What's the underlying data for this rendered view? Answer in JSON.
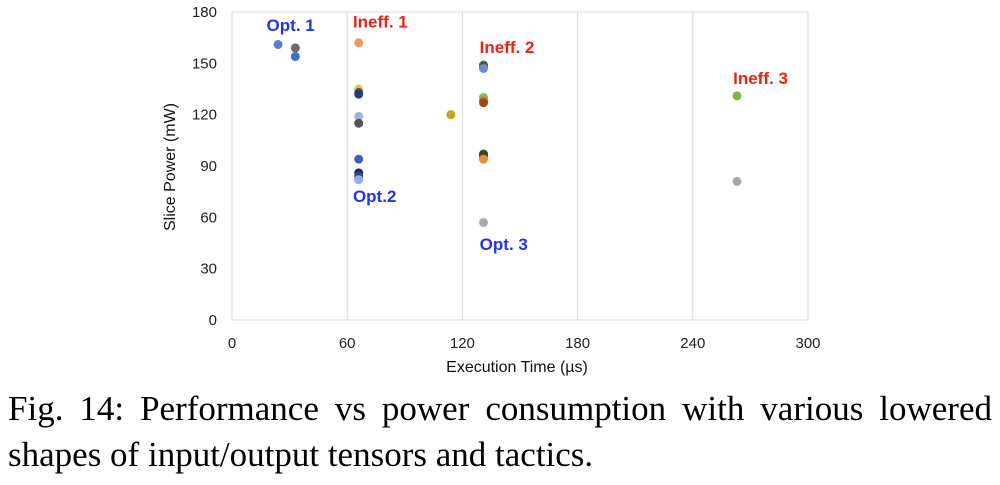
{
  "chart_data": {
    "type": "scatter",
    "xlabel": "Execution Time (µs)",
    "ylabel": "Slice Power (mW)",
    "xlim": [
      0,
      300
    ],
    "ylim": [
      0,
      180
    ],
    "xticks": [
      0,
      60,
      120,
      180,
      240,
      300
    ],
    "yticks": [
      0,
      30,
      60,
      90,
      120,
      150,
      180
    ],
    "grid": "vertical",
    "points": [
      {
        "x": 24,
        "y": 161,
        "color": "#5b7fc7"
      },
      {
        "x": 33,
        "y": 159,
        "color": "#6b6b6b"
      },
      {
        "x": 33,
        "y": 154,
        "color": "#3f6fc4"
      },
      {
        "x": 66,
        "y": 162,
        "color": "#f0995a"
      },
      {
        "x": 66,
        "y": 135,
        "color": "#f7c23a"
      },
      {
        "x": 66,
        "y": 133,
        "color": "#3c5a9a"
      },
      {
        "x": 66,
        "y": 132,
        "color": "#2a3f6e"
      },
      {
        "x": 66,
        "y": 119,
        "color": "#9db3e0"
      },
      {
        "x": 66,
        "y": 115,
        "color": "#555555"
      },
      {
        "x": 66,
        "y": 94,
        "color": "#3c63b8"
      },
      {
        "x": 66,
        "y": 86,
        "color": "#1e2f55"
      },
      {
        "x": 66,
        "y": 84,
        "color": "#2f4a86"
      },
      {
        "x": 66,
        "y": 82,
        "color": "#8fb0e8"
      },
      {
        "x": 114,
        "y": 120,
        "color": "#c9a227"
      },
      {
        "x": 131,
        "y": 149,
        "color": "#3e7a33"
      },
      {
        "x": 131,
        "y": 148,
        "color": "#4f4f4f"
      },
      {
        "x": 131,
        "y": 147,
        "color": "#6c8fd0"
      },
      {
        "x": 131,
        "y": 130,
        "color": "#7cc053"
      },
      {
        "x": 131,
        "y": 128,
        "color": "#e06a2a"
      },
      {
        "x": 131,
        "y": 127,
        "color": "#9a4b1a"
      },
      {
        "x": 131,
        "y": 97,
        "color": "#2e5a22"
      },
      {
        "x": 131,
        "y": 96,
        "color": "#3a3a3a"
      },
      {
        "x": 131,
        "y": 94,
        "color": "#f08a30"
      },
      {
        "x": 131,
        "y": 57,
        "color": "#a8a8a8"
      },
      {
        "x": 263,
        "y": 131,
        "color": "#7ab648"
      },
      {
        "x": 263,
        "y": 81,
        "color": "#a8a8a8"
      }
    ],
    "annotations": [
      {
        "text": "Opt. 1",
        "x": 18,
        "y": 169,
        "color": "#2233ee"
      },
      {
        "text": "Ineff. 1",
        "x": 63,
        "y": 171,
        "color": "#ee2211"
      },
      {
        "text": "Ineff. 2",
        "x": 129,
        "y": 156,
        "color": "#ee2211"
      },
      {
        "text": "Ineff. 3",
        "x": 261,
        "y": 138,
        "color": "#ee2211"
      },
      {
        "text": "Opt.2",
        "x": 63,
        "y": 69,
        "color": "#2233ee"
      },
      {
        "text": "Opt. 3",
        "x": 129,
        "y": 41,
        "color": "#2233ee"
      }
    ]
  },
  "caption": "Fig. 14: Performance vs power consumption with various lowered shapes of input/output tensors and tactics."
}
